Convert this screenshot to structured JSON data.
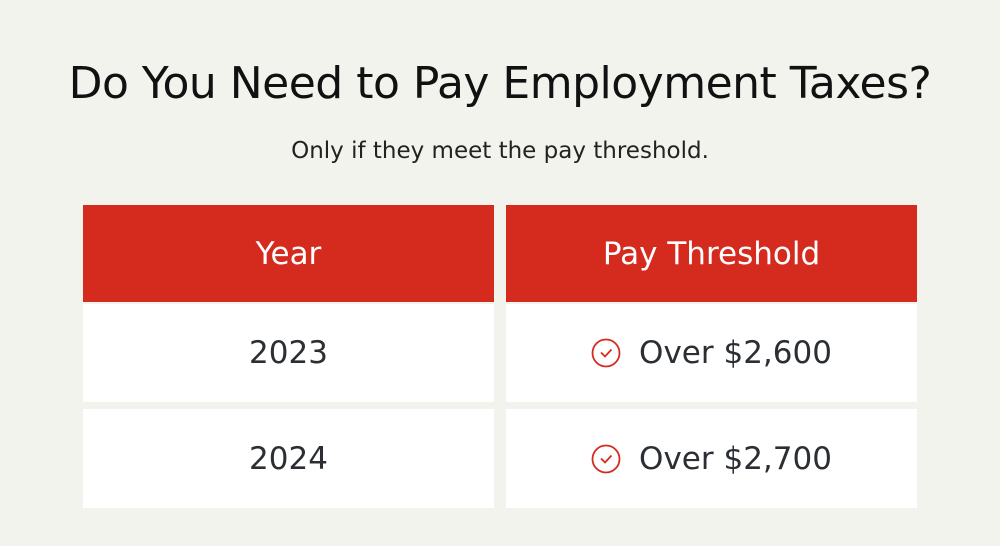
{
  "title": "Do You Need to Pay Employment Taxes?",
  "subtitle": "Only if they meet the pay threshold.",
  "table": {
    "headers": [
      "Year",
      "Pay Threshold"
    ],
    "rows": [
      {
        "year": "2023",
        "threshold": "Over $2,600",
        "icon": "check-circle-icon"
      },
      {
        "year": "2024",
        "threshold": "Over $2,700",
        "icon": "check-circle-icon"
      }
    ]
  },
  "colors": {
    "accent": "#d52b1e",
    "background": "#f3f3ee"
  }
}
